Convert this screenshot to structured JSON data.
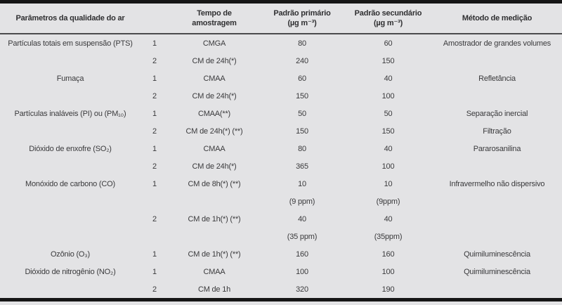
{
  "colors": {
    "background": "#e3e3e5",
    "rule": "#161616",
    "text": "#3a3a3c"
  },
  "table": {
    "headers": [
      {
        "line1": "Parâmetros da qualidade do ar"
      },
      {
        "line1": ""
      },
      {
        "line1": "Tempo de",
        "line2": "amostragem"
      },
      {
        "line1": "Padrão primário",
        "line2": "(µg m⁻³)"
      },
      {
        "line1": "Padrão secundário",
        "line2": "(µg m⁻³)"
      },
      {
        "line1": "Método de medição"
      }
    ],
    "rows": [
      {
        "cells": [
          "Partículas totais em suspensão (PTS)",
          "1",
          "CMGA",
          "80",
          "60",
          "Amostrador de grandes volumes"
        ]
      },
      {
        "cells": [
          "",
          "2",
          "CM de 24h(*)",
          "240",
          "150",
          ""
        ]
      },
      {
        "cells": [
          "Fumaça",
          "1",
          "CMAA",
          "60",
          "40",
          "Refletância"
        ]
      },
      {
        "cells": [
          "",
          "2",
          "CM de 24h(*)",
          "150",
          "100",
          ""
        ]
      },
      {
        "cells": [
          "Partículas inaláveis (PI) ou (PM₁₀)",
          "1",
          "CMAA(**)",
          "50",
          "50",
          "Separação inercial"
        ]
      },
      {
        "cells": [
          "",
          "2",
          "CM de 24h(*) (**)",
          "150",
          "150",
          "Filtração"
        ]
      },
      {
        "cells": [
          "Dióxido de enxofre (SO₂)",
          "1",
          "CMAA",
          "80",
          "40",
          "Pararosanilina"
        ]
      },
      {
        "cells": [
          "",
          "2",
          "CM de 24h(*)",
          "365",
          "100",
          ""
        ]
      },
      {
        "cells": [
          "Monóxido de carbono (CO)",
          "1",
          "CM de 8h(*) (**)",
          "10",
          "10",
          "Infravermelho não dispersivo"
        ]
      },
      {
        "cells": [
          "",
          "",
          "",
          "(9 ppm)",
          "(9ppm)",
          ""
        ]
      },
      {
        "cells": [
          "",
          "2",
          "CM de 1h(*) (**)",
          "40",
          "40",
          ""
        ]
      },
      {
        "cells": [
          "",
          "",
          "",
          "(35 ppm)",
          "(35ppm)",
          ""
        ]
      },
      {
        "cells": [
          "Ozônio (O₃)",
          "1",
          "CM de 1h(*) (**)",
          "160",
          "160",
          "Quimiluminescência"
        ]
      },
      {
        "cells": [
          "Dióxido de nitrogênio (NO₂)",
          "1",
          "CMAA",
          "100",
          "100",
          "Quimiluminescência"
        ]
      },
      {
        "cells": [
          "",
          "2",
          "CM de 1h",
          "320",
          "190",
          ""
        ]
      }
    ]
  }
}
